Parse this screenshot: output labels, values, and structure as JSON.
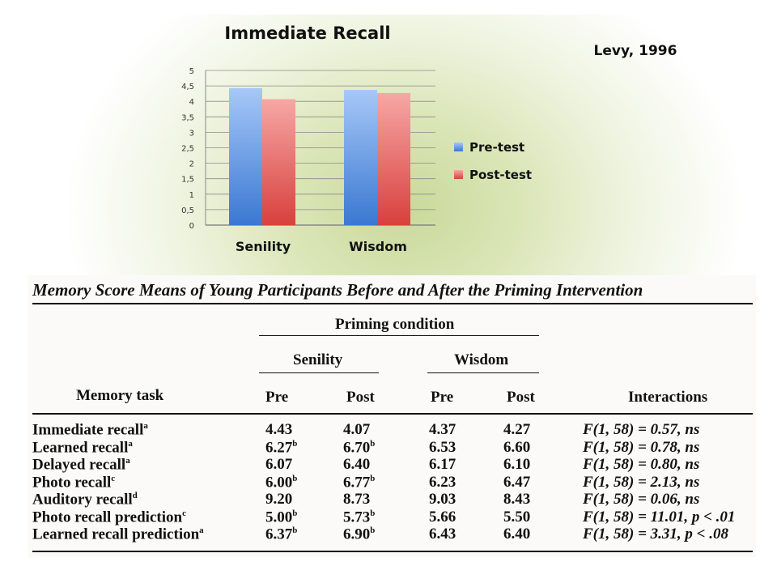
{
  "author": "Levy, 1996",
  "chart_data": {
    "type": "bar",
    "title": "Immediate Recall",
    "categories": [
      "Senility",
      "Wisdom"
    ],
    "series": [
      {
        "name": "Pre-test",
        "values": [
          4.43,
          4.37
        ],
        "color": "#4f86d6"
      },
      {
        "name": "Post-test",
        "values": [
          4.07,
          4.27
        ],
        "color": "#e05a57"
      }
    ],
    "ylim": [
      0,
      5
    ],
    "yticks": [
      "0",
      "0,5",
      "1",
      "1,5",
      "2",
      "2,5",
      "3",
      "3,5",
      "4",
      "4,5",
      "5"
    ],
    "grid": true,
    "legend": "right"
  },
  "table": {
    "title": "Memory Score Means of Young Participants Before and After the Priming Intervention",
    "spanner": "Priming condition",
    "groups": [
      "Senility",
      "Wisdom"
    ],
    "col_headers": [
      "Memory task",
      "Pre",
      "Post",
      "Pre",
      "Post",
      "Interactions"
    ],
    "rows": [
      {
        "task": "Immediate recall",
        "sup": "a",
        "v": [
          [
            "4.43",
            ""
          ],
          [
            "4.07",
            ""
          ],
          [
            "4.37",
            ""
          ],
          [
            "4.27",
            ""
          ]
        ],
        "f": "F(1, 58) = 0.57, ns"
      },
      {
        "task": "Learned recall",
        "sup": "a",
        "v": [
          [
            "6.27",
            "b"
          ],
          [
            "6.70",
            "b"
          ],
          [
            "6.53",
            ""
          ],
          [
            "6.60",
            ""
          ]
        ],
        "f": "F(1, 58) = 0.78, ns"
      },
      {
        "task": "Delayed recall",
        "sup": "a",
        "v": [
          [
            "6.07",
            ""
          ],
          [
            "6.40",
            ""
          ],
          [
            "6.17",
            ""
          ],
          [
            "6.10",
            ""
          ]
        ],
        "f": "F(1, 58) = 0.80, ns"
      },
      {
        "task": "Photo recall",
        "sup": "c",
        "v": [
          [
            "6.00",
            "b"
          ],
          [
            "6.77",
            "b"
          ],
          [
            "6.23",
            ""
          ],
          [
            "6.47",
            ""
          ]
        ],
        "f": "F(1, 58) = 2.13, ns"
      },
      {
        "task": "Auditory recall",
        "sup": "d",
        "v": [
          [
            "9.20",
            ""
          ],
          [
            "8.73",
            ""
          ],
          [
            "9.03",
            ""
          ],
          [
            "8.43",
            ""
          ]
        ],
        "f": "F(1, 58) = 0.06, ns"
      },
      {
        "task": "Photo recall prediction",
        "sup": "c",
        "v": [
          [
            "5.00",
            "b"
          ],
          [
            "5.73",
            "b"
          ],
          [
            "5.66",
            ""
          ],
          [
            "5.50",
            ""
          ]
        ],
        "f": "F(1, 58) = 11.01, p < .01"
      },
      {
        "task": "Learned recall prediction",
        "sup": "a",
        "v": [
          [
            "6.37",
            "b"
          ],
          [
            "6.90",
            "b"
          ],
          [
            "6.43",
            ""
          ],
          [
            "6.40",
            ""
          ]
        ],
        "f": "F(1, 58) = 3.31, p < .08"
      }
    ]
  }
}
